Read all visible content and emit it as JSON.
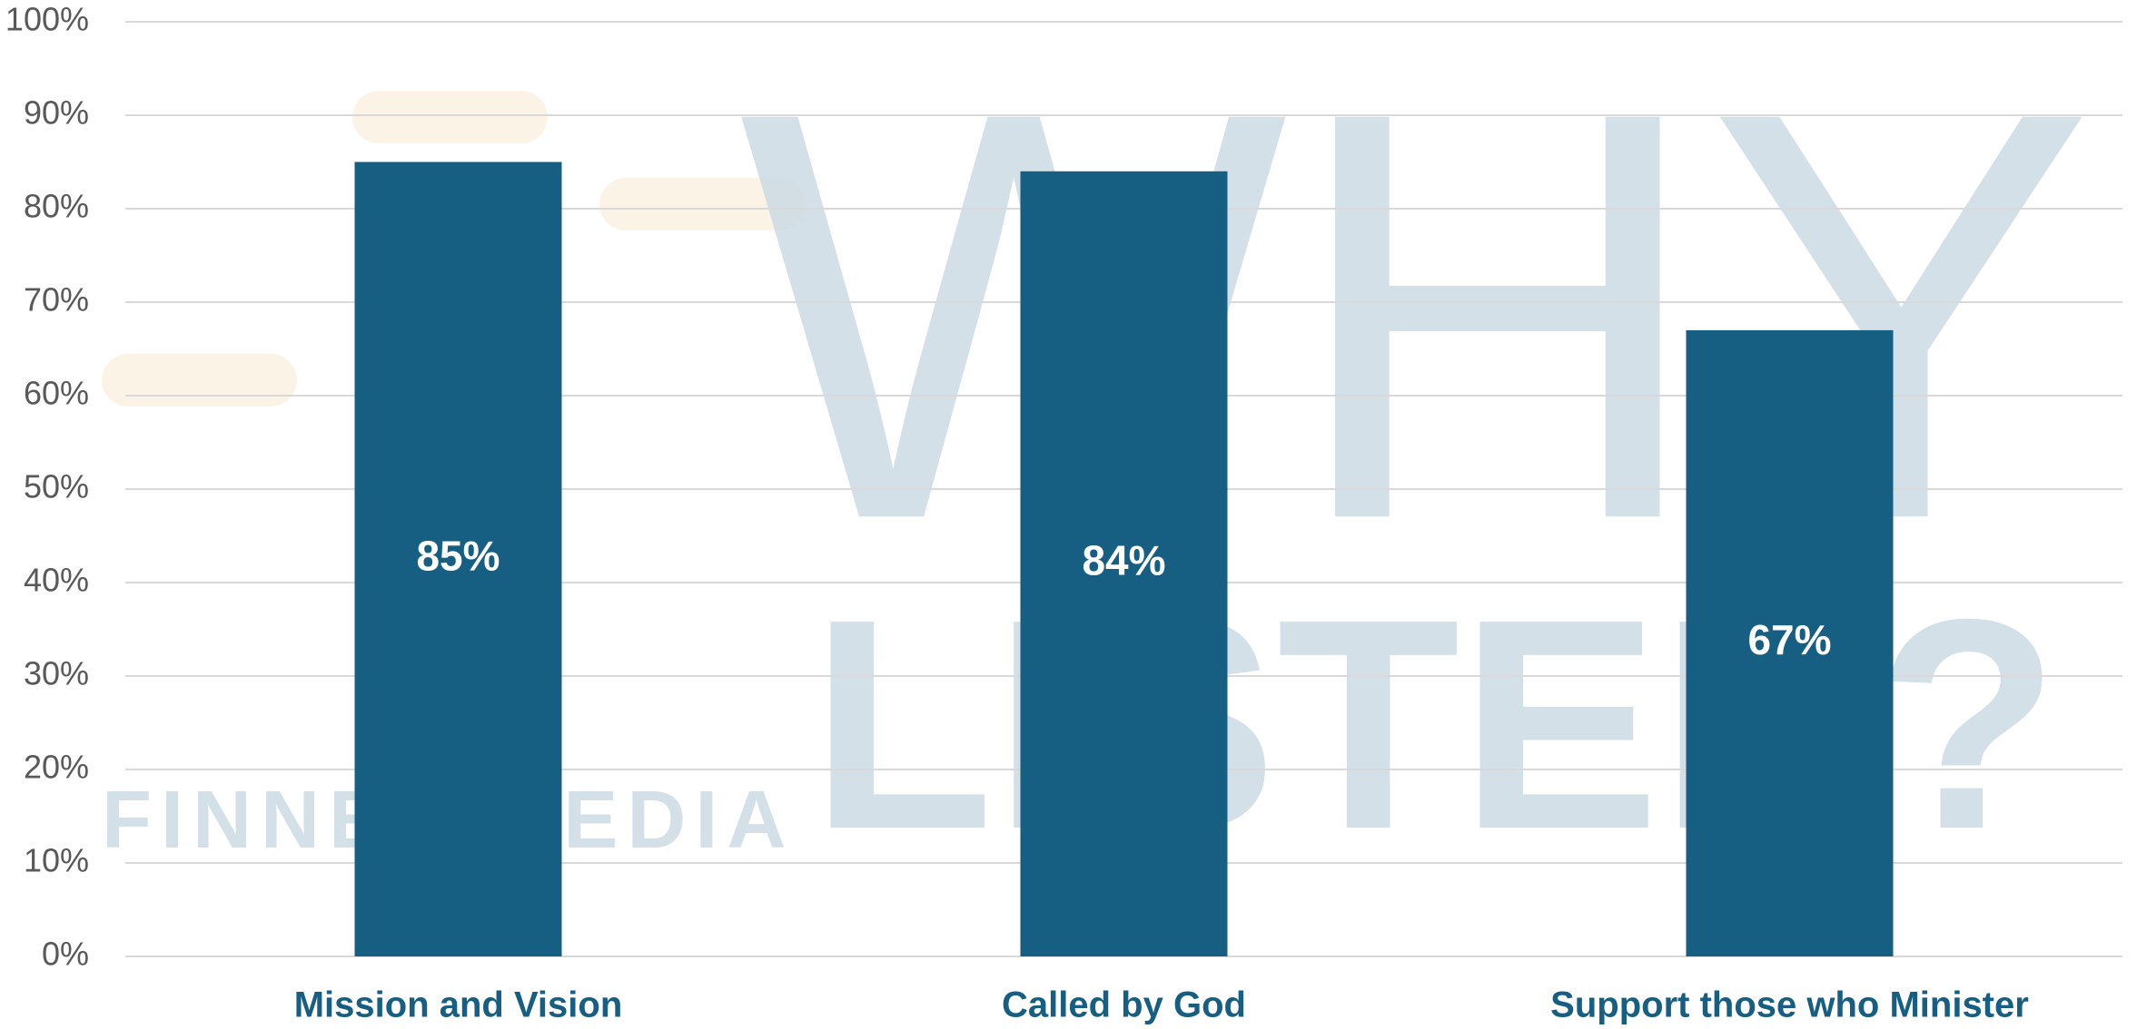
{
  "chart_data": {
    "type": "bar",
    "categories": [
      "Mission and Vision",
      "Called by God",
      "Support those who Minister"
    ],
    "values": [
      85,
      84,
      67
    ],
    "value_labels": [
      "85%",
      "84%",
      "67%"
    ],
    "color": "#175f82",
    "ylim": [
      0,
      100
    ],
    "yticks": [
      {
        "value": 0,
        "label": "0%"
      },
      {
        "value": 10,
        "label": "10%"
      },
      {
        "value": 20,
        "label": "20%"
      },
      {
        "value": 30,
        "label": "30%"
      },
      {
        "value": 40,
        "label": "40%"
      },
      {
        "value": 50,
        "label": "50%"
      },
      {
        "value": 60,
        "label": "60%"
      },
      {
        "value": 70,
        "label": "70%"
      },
      {
        "value": 80,
        "label": "80%"
      },
      {
        "value": 90,
        "label": "90%"
      },
      {
        "value": 100,
        "label": "100%"
      }
    ],
    "grid": true,
    "watermark": {
      "line1": "WHY",
      "line2": "LISTEN?",
      "brand": "FINNEY MEDIA"
    }
  }
}
